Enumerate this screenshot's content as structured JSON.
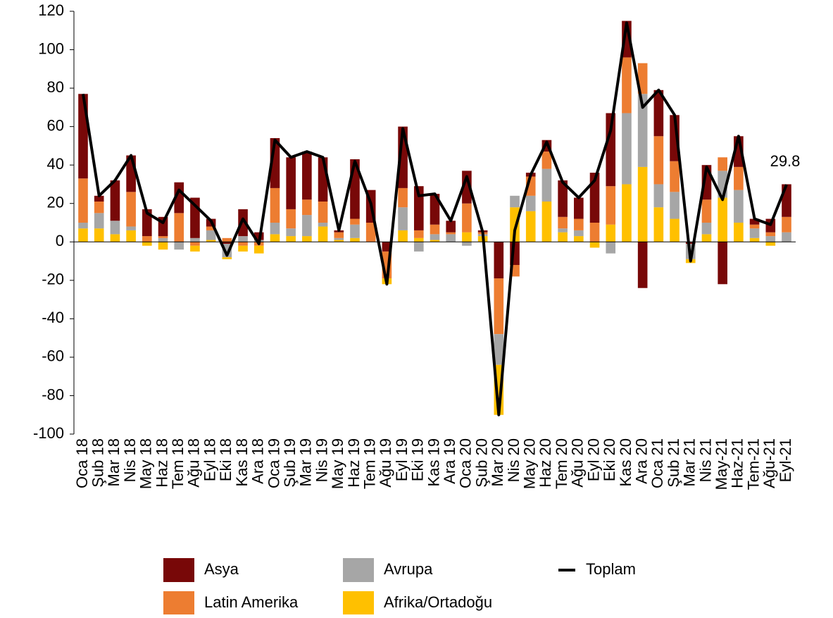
{
  "chart_data": {
    "type": "bar",
    "stacked": true,
    "categories": [
      "Oca 18",
      "Şub 18",
      "Mar 18",
      "Nis 18",
      "May 18",
      "Haz 18",
      "Tem 18",
      "Ağu 18",
      "Eyl 18",
      "Eki 18",
      "Kas 18",
      "Ara 18",
      "Oca 19",
      "Şub 19",
      "Mar 19",
      "Nis 19",
      "May 19",
      "Haz 19",
      "Tem 19",
      "Ağu 19",
      "Eyl 19",
      "Eki 19",
      "Kas 19",
      "Ara 19",
      "Oca 20",
      "Şub 20",
      "Mar 20",
      "Nis 20",
      "May 20",
      "Haz 20",
      "Tem 20",
      "Ağu 20",
      "Eyl 20",
      "Eki 20",
      "Kas 20",
      "Ara 20",
      "Oca 21",
      "Şub 21",
      "Mar 21",
      "Nis 21",
      "May-21",
      "Haz-21",
      "Tem-21",
      "Ağu-21",
      "Eyl-21"
    ],
    "series": [
      {
        "name": "Afrika/Ortadoğu",
        "color": "#ffc000",
        "values": [
          7,
          7,
          4,
          6,
          -2,
          -4,
          0,
          -3,
          1,
          -1,
          -3,
          -4,
          4,
          3,
          3,
          8,
          1,
          2,
          0,
          -3,
          6,
          2,
          1,
          0,
          5,
          3,
          -26,
          18,
          16,
          21,
          5,
          3,
          -3,
          9,
          30,
          39,
          18,
          12,
          -2,
          4,
          23,
          10,
          2,
          -2,
          0
        ]
      },
      {
        "name": "Avrupa",
        "color": "#a6a6a6",
        "values": [
          3,
          8,
          7,
          2,
          0,
          2,
          -4,
          2,
          5,
          -7,
          3,
          1,
          6,
          4,
          11,
          2,
          1,
          7,
          0,
          0,
          12,
          -5,
          3,
          4,
          -2,
          1,
          -16,
          6,
          8,
          17,
          2,
          3,
          0,
          -6,
          37,
          38,
          12,
          14,
          -8,
          6,
          14,
          17,
          5,
          3,
          5
        ]
      },
      {
        "name": "Latin Amerika",
        "color": "#ed7d31",
        "values": [
          23,
          6,
          0,
          18,
          3,
          1,
          15,
          -2,
          2,
          2,
          -2,
          -2,
          18,
          10,
          8,
          11,
          3,
          3,
          10,
          -14,
          10,
          4,
          5,
          1,
          15,
          1,
          -29,
          -6,
          10,
          9,
          6,
          6,
          10,
          20,
          29,
          16,
          25,
          16,
          0,
          12,
          7,
          12,
          2,
          2,
          8
        ]
      },
      {
        "name": "Asya",
        "color": "#780808",
        "values": [
          44,
          3,
          21,
          19,
          14,
          10,
          16,
          21,
          4,
          -1,
          14,
          4,
          26,
          27,
          25,
          23,
          1,
          31,
          17,
          -5,
          32,
          23,
          16,
          6,
          17,
          1,
          -19,
          -12,
          2,
          6,
          19,
          11,
          26,
          38,
          19,
          -24,
          24,
          24,
          -1,
          18,
          -22,
          16,
          3,
          7,
          17
        ]
      },
      {
        "name": "Toplam",
        "color": "#000000",
        "type": "line",
        "values": [
          77,
          24,
          32,
          45,
          15,
          10,
          27,
          19,
          11,
          -7,
          12,
          -1,
          53,
          44,
          47,
          44,
          6,
          42,
          20,
          -22,
          59,
          24,
          25,
          11,
          34,
          5,
          -90,
          6,
          35,
          52,
          31,
          23,
          32,
          58,
          114,
          70,
          79,
          66,
          -10,
          39,
          22,
          55,
          12,
          9,
          29.8
        ],
        "value_labels": [
          null,
          null,
          null,
          null,
          null,
          null,
          null,
          null,
          null,
          null,
          null,
          null,
          null,
          null,
          null,
          null,
          null,
          null,
          null,
          null,
          null,
          null,
          null,
          null,
          null,
          null,
          null,
          null,
          null,
          null,
          null,
          null,
          null,
          null,
          null,
          null,
          null,
          null,
          null,
          null,
          null,
          null,
          null,
          null,
          "29.8"
        ]
      }
    ],
    "ylim": [
      -100,
      120
    ],
    "yticks": [
      -100,
      -80,
      -60,
      -40,
      -20,
      0,
      20,
      40,
      60,
      80,
      100,
      120
    ],
    "legend": "bottom"
  }
}
